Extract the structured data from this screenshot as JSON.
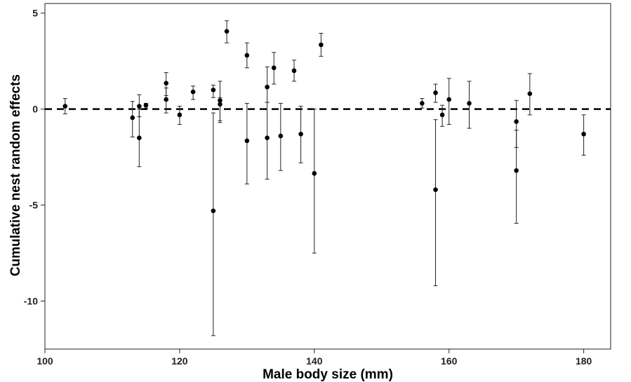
{
  "chart_data": {
    "type": "scatter",
    "title": "",
    "xlabel": "Male body size (mm)",
    "ylabel": "Cumulative nest random effects",
    "xlim": [
      100,
      184
    ],
    "ylim": [
      -12.5,
      5.5
    ],
    "xticks": [
      100,
      120,
      140,
      160,
      180
    ],
    "yticks": [
      5,
      0,
      -5,
      -10
    ],
    "xtick_labels": [
      "100",
      "120",
      "140",
      "160",
      "180"
    ],
    "ytick_labels": [
      "5",
      "0",
      "-5",
      "-10"
    ],
    "grid": false,
    "reference_line": {
      "y": 0,
      "style": "dashed"
    },
    "points": [
      {
        "x": 103,
        "y": 0.15,
        "lo": -0.25,
        "hi": 0.55
      },
      {
        "x": 113,
        "y": -0.45,
        "lo": -1.45,
        "hi": 0.4
      },
      {
        "x": 114,
        "y": 0.15,
        "lo": -0.4,
        "hi": 0.75
      },
      {
        "x": 114,
        "y": -1.5,
        "lo": -3.0,
        "hi": 0.0
      },
      {
        "x": 115,
        "y": 0.2,
        "lo": 0.05,
        "hi": 0.3
      },
      {
        "x": 118,
        "y": 1.35,
        "lo": 0.7,
        "hi": 1.9
      },
      {
        "x": 118,
        "y": 0.5,
        "lo": -0.2,
        "hi": 1.1
      },
      {
        "x": 120,
        "y": -0.3,
        "lo": -0.8,
        "hi": 0.15
      },
      {
        "x": 122,
        "y": 0.9,
        "lo": 0.5,
        "hi": 1.2
      },
      {
        "x": 125,
        "y": 1.0,
        "lo": 0.6,
        "hi": 1.25
      },
      {
        "x": 125,
        "y": -5.3,
        "lo": -11.8,
        "hi": -0.2
      },
      {
        "x": 126,
        "y": 0.45,
        "lo": -0.6,
        "hi": 1.45
      },
      {
        "x": 126,
        "y": 0.25,
        "lo": -0.7,
        "hi": 0.6
      },
      {
        "x": 127,
        "y": 4.05,
        "lo": 3.45,
        "hi": 4.6
      },
      {
        "x": 130,
        "y": 2.8,
        "lo": 2.15,
        "hi": 3.45
      },
      {
        "x": 130,
        "y": -1.65,
        "lo": -3.9,
        "hi": 0.3
      },
      {
        "x": 133,
        "y": 1.15,
        "lo": 0.35,
        "hi": 2.2
      },
      {
        "x": 133,
        "y": -1.5,
        "lo": -3.65,
        "hi": 0.35
      },
      {
        "x": 134,
        "y": 2.15,
        "lo": 1.3,
        "hi": 2.95
      },
      {
        "x": 135,
        "y": -1.4,
        "lo": -3.2,
        "hi": 0.3
      },
      {
        "x": 137,
        "y": 2.0,
        "lo": 1.45,
        "hi": 2.55
      },
      {
        "x": 138,
        "y": -1.3,
        "lo": -2.8,
        "hi": 0.15
      },
      {
        "x": 140,
        "y": -3.35,
        "lo": -7.5,
        "hi": 0.0
      },
      {
        "x": 141,
        "y": 3.35,
        "lo": 2.75,
        "hi": 3.95
      },
      {
        "x": 156,
        "y": 0.3,
        "lo": 0.05,
        "hi": 0.55
      },
      {
        "x": 158,
        "y": 0.85,
        "lo": 0.35,
        "hi": 1.3
      },
      {
        "x": 158,
        "y": -4.2,
        "lo": -9.2,
        "hi": -0.55
      },
      {
        "x": 159,
        "y": -0.3,
        "lo": -0.9,
        "hi": 0.2
      },
      {
        "x": 160,
        "y": 0.5,
        "lo": -0.8,
        "hi": 1.6
      },
      {
        "x": 163,
        "y": 0.3,
        "lo": -1.0,
        "hi": 1.45
      },
      {
        "x": 170,
        "y": -0.65,
        "lo": -2.0,
        "hi": 0.45
      },
      {
        "x": 170,
        "y": -3.2,
        "lo": -5.95,
        "hi": -1.1
      },
      {
        "x": 172,
        "y": 0.8,
        "lo": -0.3,
        "hi": 1.85
      },
      {
        "x": 180,
        "y": -1.3,
        "lo": -2.4,
        "hi": -0.3
      }
    ]
  }
}
